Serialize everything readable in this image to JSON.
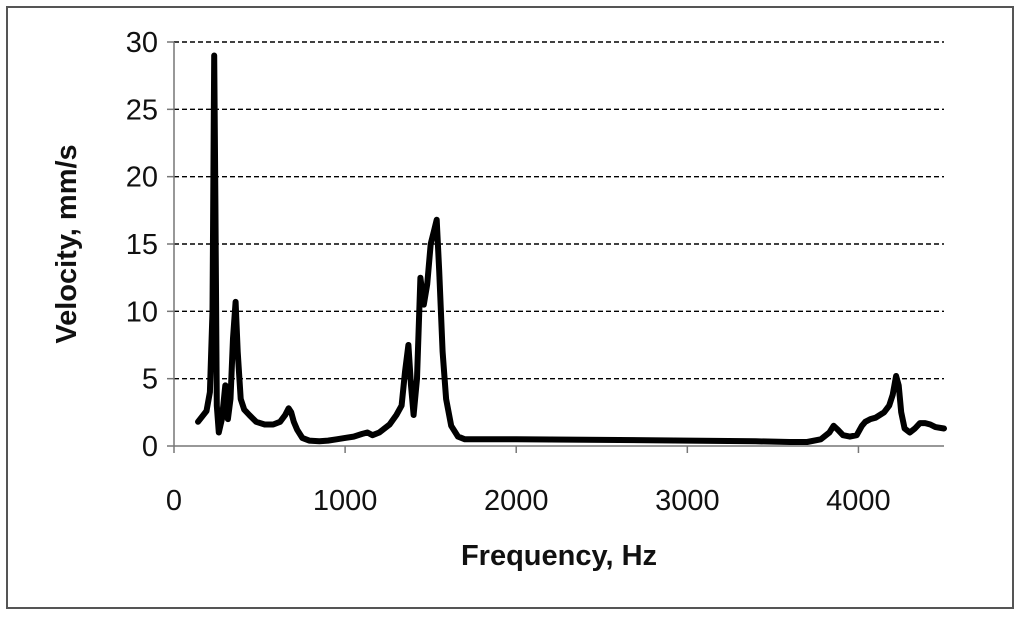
{
  "chart_data": {
    "type": "line",
    "title": "",
    "xlabel": "Frequency, Hz",
    "ylabel": "Velocity, mm/s",
    "xlim": [
      0,
      4500
    ],
    "ylim": [
      0,
      30
    ],
    "xticks": [
      "0",
      "1000",
      "2000",
      "3000",
      "4000"
    ],
    "yticks": [
      "0",
      "5",
      "10",
      "15",
      "20",
      "25",
      "30"
    ],
    "grid": "horizontal dashed",
    "line_color": "#000000",
    "series": [
      {
        "x": [
          140,
          190,
          210,
          225,
          235,
          242,
          250,
          262,
          280,
          300,
          315,
          330,
          345,
          360,
          372,
          390,
          410,
          440,
          480,
          530,
          580,
          620,
          650,
          670,
          685,
          700,
          720,
          750,
          790,
          850,
          900,
          950,
          1000,
          1050,
          1100,
          1130,
          1160,
          1200,
          1260,
          1300,
          1330,
          1350,
          1370,
          1385,
          1400,
          1420,
          1440,
          1460,
          1480,
          1500,
          1520,
          1535,
          1550,
          1570,
          1590,
          1620,
          1660,
          1700,
          1750,
          1800,
          2000,
          2500,
          3000,
          3400,
          3600,
          3700,
          3780,
          3830,
          3855,
          3880,
          3910,
          3950,
          3990,
          4020,
          4040,
          4070,
          4100,
          4150,
          4180,
          4200,
          4220,
          4235,
          4250,
          4270,
          4300,
          4330,
          4360,
          4390,
          4420,
          4450,
          4500
        ],
        "y": [
          1.8,
          2.6,
          4.0,
          10.0,
          29.0,
          18.0,
          3.0,
          1.0,
          2.0,
          4.5,
          2.0,
          3.5,
          8.0,
          10.7,
          7.0,
          3.5,
          2.7,
          2.3,
          1.8,
          1.6,
          1.6,
          1.8,
          2.3,
          2.8,
          2.5,
          1.8,
          1.2,
          0.6,
          0.4,
          0.35,
          0.4,
          0.5,
          0.6,
          0.7,
          0.9,
          1.0,
          0.8,
          1.0,
          1.6,
          2.3,
          3.0,
          5.5,
          7.5,
          4.5,
          2.3,
          5.0,
          12.5,
          10.5,
          12.0,
          15.0,
          16.0,
          16.8,
          13.0,
          7.0,
          3.5,
          1.5,
          0.7,
          0.5,
          0.5,
          0.5,
          0.5,
          0.45,
          0.4,
          0.35,
          0.3,
          0.3,
          0.5,
          1.0,
          1.5,
          1.2,
          0.8,
          0.7,
          0.8,
          1.5,
          1.8,
          2.0,
          2.1,
          2.5,
          3.0,
          3.8,
          5.2,
          4.5,
          2.5,
          1.3,
          1.0,
          1.3,
          1.7,
          1.7,
          1.6,
          1.4,
          1.3
        ]
      }
    ]
  }
}
